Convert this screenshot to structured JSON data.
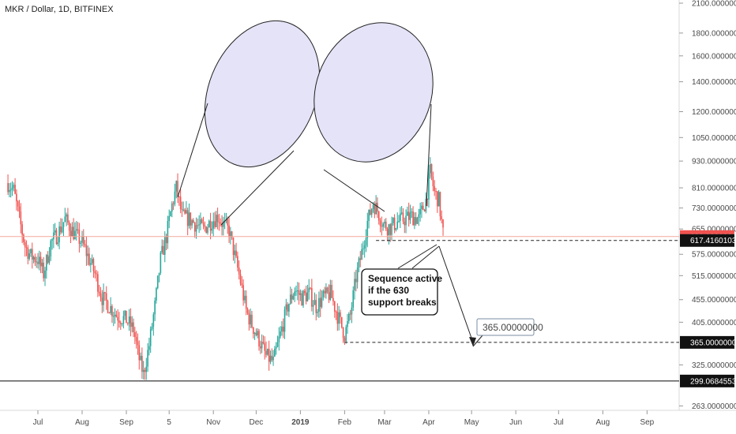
{
  "chart_data": {
    "type": "candlestick",
    "title": "MKR / Dollar, 1D, BITFINEX",
    "y_scale": "log",
    "ylim": [
      255,
      2100
    ],
    "price_ticks": [
      "2100.00000000",
      "1800.00000000",
      "1600.00000000",
      "1400.00000000",
      "1200.00000000",
      "1050.00000000",
      "930.00000000",
      "810.00000000",
      "730.00000000",
      "655.00000000",
      "575.00000000",
      "515.00000000",
      "455.00000000",
      "405.00000000",
      "325.00000000",
      "263.00000000"
    ],
    "price_tick_values": [
      2100,
      1800,
      1600,
      1400,
      1200,
      1050,
      930,
      810,
      730,
      655,
      575,
      515,
      455,
      405,
      325,
      263
    ],
    "time_ticks": [
      "Jul",
      "Aug",
      "Sep",
      "5",
      "Nov",
      "Dec",
      "2019",
      "Feb",
      "Mar",
      "Apr",
      "May",
      "Jun",
      "Jul",
      "Aug",
      "Sep"
    ],
    "time_tick_dates": [
      "2018-07-01",
      "2018-08-01",
      "2018-09-01",
      "2018-10-01",
      "2018-11-01",
      "2018-12-01",
      "2019-01-01",
      "2019-02-01",
      "2019-03-01",
      "2019-04-01",
      "2019-05-01",
      "2019-06-01",
      "2019-07-01",
      "2019-08-01",
      "2019-09-01"
    ],
    "bold_time_ticks": [
      "2019"
    ],
    "price_series": [
      {
        "date": "2018-06-10",
        "price": 830
      },
      {
        "date": "2018-06-14",
        "price": 800
      },
      {
        "date": "2018-06-18",
        "price": 690
      },
      {
        "date": "2018-06-22",
        "price": 600
      },
      {
        "date": "2018-06-26",
        "price": 570
      },
      {
        "date": "2018-07-01",
        "price": 560
      },
      {
        "date": "2018-07-05",
        "price": 520
      },
      {
        "date": "2018-07-10",
        "price": 610
      },
      {
        "date": "2018-07-15",
        "price": 640
      },
      {
        "date": "2018-07-20",
        "price": 690
      },
      {
        "date": "2018-07-25",
        "price": 650
      },
      {
        "date": "2018-08-01",
        "price": 610
      },
      {
        "date": "2018-08-05",
        "price": 570
      },
      {
        "date": "2018-08-10",
        "price": 520
      },
      {
        "date": "2018-08-15",
        "price": 460
      },
      {
        "date": "2018-08-20",
        "price": 440
      },
      {
        "date": "2018-08-25",
        "price": 420
      },
      {
        "date": "2018-09-01",
        "price": 410
      },
      {
        "date": "2018-09-06",
        "price": 390
      },
      {
        "date": "2018-09-10",
        "price": 335
      },
      {
        "date": "2018-09-13",
        "price": 310
      },
      {
        "date": "2018-09-17",
        "price": 360
      },
      {
        "date": "2018-09-21",
        "price": 440
      },
      {
        "date": "2018-09-25",
        "price": 560
      },
      {
        "date": "2018-09-29",
        "price": 630
      },
      {
        "date": "2018-10-03",
        "price": 740
      },
      {
        "date": "2018-10-06",
        "price": 810
      },
      {
        "date": "2018-10-10",
        "price": 700
      },
      {
        "date": "2018-10-15",
        "price": 690
      },
      {
        "date": "2018-10-20",
        "price": 670
      },
      {
        "date": "2018-10-25",
        "price": 655
      },
      {
        "date": "2018-10-30",
        "price": 680
      },
      {
        "date": "2018-11-04",
        "price": 700
      },
      {
        "date": "2018-11-08",
        "price": 670
      },
      {
        "date": "2018-11-12",
        "price": 650
      },
      {
        "date": "2018-11-16",
        "price": 570
      },
      {
        "date": "2018-11-20",
        "price": 500
      },
      {
        "date": "2018-11-24",
        "price": 430
      },
      {
        "date": "2018-11-28",
        "price": 400
      },
      {
        "date": "2018-12-03",
        "price": 370
      },
      {
        "date": "2018-12-08",
        "price": 340
      },
      {
        "date": "2018-12-13",
        "price": 330
      },
      {
        "date": "2018-12-18",
        "price": 380
      },
      {
        "date": "2018-12-23",
        "price": 440
      },
      {
        "date": "2018-12-28",
        "price": 480
      },
      {
        "date": "2019-01-02",
        "price": 460
      },
      {
        "date": "2019-01-07",
        "price": 470
      },
      {
        "date": "2019-01-12",
        "price": 440
      },
      {
        "date": "2019-01-17",
        "price": 460
      },
      {
        "date": "2019-01-22",
        "price": 470
      },
      {
        "date": "2019-01-27",
        "price": 420
      },
      {
        "date": "2019-02-01",
        "price": 380
      },
      {
        "date": "2019-02-05",
        "price": 420
      },
      {
        "date": "2019-02-09",
        "price": 510
      },
      {
        "date": "2019-02-13",
        "price": 580
      },
      {
        "date": "2019-02-17",
        "price": 680
      },
      {
        "date": "2019-02-21",
        "price": 750
      },
      {
        "date": "2019-02-24",
        "price": 720
      },
      {
        "date": "2019-02-28",
        "price": 670
      },
      {
        "date": "2019-03-05",
        "price": 660
      },
      {
        "date": "2019-03-10",
        "price": 680
      },
      {
        "date": "2019-03-15",
        "price": 690
      },
      {
        "date": "2019-03-20",
        "price": 700
      },
      {
        "date": "2019-03-25",
        "price": 690
      },
      {
        "date": "2019-03-30",
        "price": 760
      },
      {
        "date": "2019-04-02",
        "price": 880
      },
      {
        "date": "2019-04-05",
        "price": 790
      },
      {
        "date": "2019-04-08",
        "price": 760
      },
      {
        "date": "2019-04-11",
        "price": 640
      }
    ],
    "support_line": {
      "price": 630,
      "label": "630.00000000"
    },
    "support_low_line": {
      "price": 617.41601032,
      "label": "617.41601032"
    },
    "target_line": {
      "price": 365,
      "label": "365.00000000"
    },
    "floor_line": {
      "price": 299.06845533,
      "label": "299.06845533"
    },
    "target_callout": "365.00000000",
    "note_lines": [
      "Sequence active",
      "if the 630",
      "support breaks"
    ]
  }
}
